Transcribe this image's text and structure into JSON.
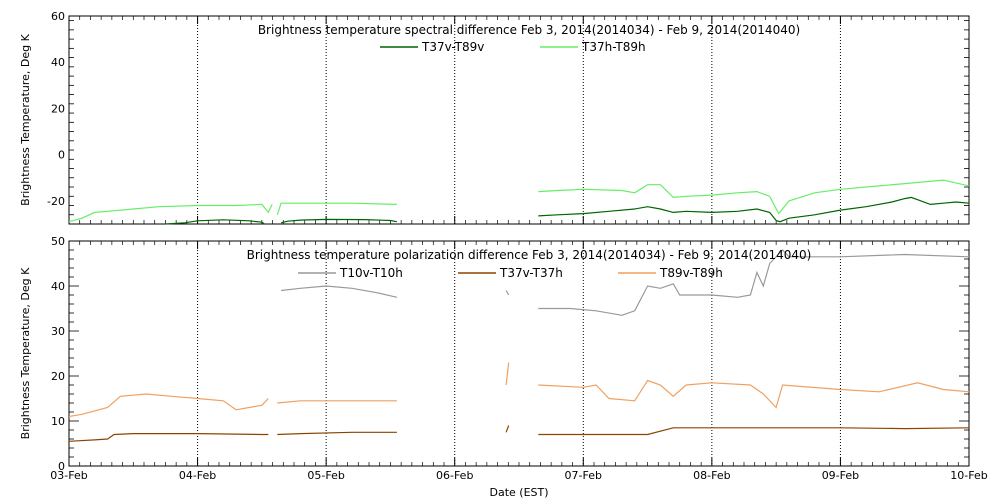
{
  "chart_data": [
    {
      "type": "line",
      "title": "Brightness temperature spectral difference     Feb  3, 2014(2014034) - Feb  9, 2014(2014040)",
      "xlabel": "",
      "ylabel": "Brightness Temperature, Deg K",
      "xlim": [
        0,
        7
      ],
      "ylim": [
        -30,
        60
      ],
      "yticks": [
        -20,
        0,
        20,
        40,
        60
      ],
      "grid": "vertical dotted",
      "legend_placement": "top-center",
      "series": [
        {
          "name": "T37v-T89v",
          "color": "#006400",
          "segments": [
            [
              [
                0.75,
                -30
              ],
              [
                0.9,
                -29.5
              ],
              [
                1.0,
                -28.6
              ],
              [
                1.2,
                -28.2
              ],
              [
                1.4,
                -28.6
              ],
              [
                1.5,
                -29.2
              ],
              [
                1.52,
                -30
              ]
            ],
            [
              [
                1.65,
                -29.5
              ],
              [
                1.7,
                -28.8
              ],
              [
                1.8,
                -28.3
              ],
              [
                2.0,
                -28.0
              ],
              [
                2.3,
                -28.1
              ],
              [
                2.5,
                -28.5
              ],
              [
                2.55,
                -29.0
              ]
            ],
            [
              [
                3.65,
                -26.5
              ],
              [
                3.8,
                -26.0
              ],
              [
                4.0,
                -25.5
              ],
              [
                4.2,
                -24.5
              ],
              [
                4.4,
                -23.5
              ],
              [
                4.5,
                -22.5
              ],
              [
                4.6,
                -23.5
              ],
              [
                4.7,
                -25.0
              ],
              [
                4.8,
                -24.5
              ],
              [
                5.0,
                -25.0
              ],
              [
                5.2,
                -24.5
              ],
              [
                5.35,
                -23.5
              ],
              [
                5.45,
                -25.0
              ],
              [
                5.5,
                -28.5
              ],
              [
                5.53,
                -29.0
              ],
              [
                5.6,
                -27.5
              ],
              [
                5.8,
                -26.0
              ],
              [
                6.0,
                -24.0
              ],
              [
                6.2,
                -22.5
              ],
              [
                6.4,
                -20.5
              ],
              [
                6.5,
                -19.0
              ],
              [
                6.55,
                -18.5
              ],
              [
                6.6,
                -19.5
              ],
              [
                6.7,
                -21.5
              ],
              [
                6.8,
                -21.0
              ],
              [
                6.9,
                -20.5
              ],
              [
                7.0,
                -21.0
              ]
            ]
          ]
        },
        {
          "name": "T37h-T89h",
          "color": "#66ee66",
          "segments": [
            [
              [
                0.0,
                -29.0
              ],
              [
                0.1,
                -27.5
              ],
              [
                0.2,
                -25.0
              ],
              [
                0.3,
                -24.5
              ],
              [
                0.5,
                -23.5
              ],
              [
                0.7,
                -22.5
              ],
              [
                1.0,
                -22.0
              ],
              [
                1.3,
                -22.0
              ],
              [
                1.5,
                -21.5
              ],
              [
                1.55,
                -25.0
              ],
              [
                1.58,
                -21.5
              ]
            ],
            [
              [
                1.62,
                -26.0
              ],
              [
                1.65,
                -21.0
              ],
              [
                1.9,
                -21.0
              ],
              [
                2.2,
                -21.0
              ],
              [
                2.55,
                -21.5
              ]
            ],
            [
              [
                3.65,
                -16.0
              ],
              [
                3.8,
                -15.5
              ],
              [
                4.0,
                -15.0
              ],
              [
                4.3,
                -15.5
              ],
              [
                4.4,
                -16.5
              ],
              [
                4.5,
                -13.0
              ],
              [
                4.6,
                -13.0
              ],
              [
                4.7,
                -18.5
              ],
              [
                4.8,
                -18.0
              ],
              [
                5.0,
                -17.5
              ],
              [
                5.2,
                -16.5
              ],
              [
                5.35,
                -16.0
              ],
              [
                5.45,
                -18.0
              ],
              [
                5.52,
                -25.5
              ],
              [
                5.6,
                -20.0
              ],
              [
                5.8,
                -16.5
              ],
              [
                6.0,
                -15.0
              ],
              [
                6.3,
                -13.5
              ],
              [
                6.5,
                -12.5
              ],
              [
                6.8,
                -11.0
              ],
              [
                7.0,
                -13.5
              ]
            ]
          ]
        }
      ]
    },
    {
      "type": "line",
      "title": "Brightness temperature polarization difference     Feb  3, 2014(2014034) - Feb  9, 2014(2014040)",
      "xlabel": "Date (EST)",
      "ylabel": "Brightness Temperature, Deg K",
      "xlim": [
        0,
        7
      ],
      "ylim": [
        0,
        50
      ],
      "yticks": [
        0,
        10,
        20,
        30,
        40,
        50
      ],
      "xticks": [
        "03-Feb",
        "04-Feb",
        "05-Feb",
        "06-Feb",
        "07-Feb",
        "08-Feb",
        "09-Feb",
        "10-Feb"
      ],
      "grid": "vertical dotted",
      "legend_placement": "top-center",
      "series": [
        {
          "name": "T10v-T10h",
          "color": "#999999",
          "segments": [
            [
              [
                1.65,
                39.0
              ],
              [
                1.8,
                39.5
              ],
              [
                2.0,
                40.0
              ],
              [
                2.2,
                39.5
              ],
              [
                2.4,
                38.5
              ],
              [
                2.55,
                37.5
              ]
            ],
            [
              [
                3.4,
                39.0
              ],
              [
                3.42,
                38.0
              ]
            ],
            [
              [
                3.65,
                35.0
              ],
              [
                3.9,
                35.0
              ],
              [
                4.1,
                34.5
              ],
              [
                4.3,
                33.5
              ],
              [
                4.4,
                34.5
              ],
              [
                4.5,
                40.0
              ],
              [
                4.6,
                39.5
              ],
              [
                4.7,
                40.5
              ],
              [
                4.75,
                38.0
              ],
              [
                5.0,
                38.0
              ],
              [
                5.2,
                37.5
              ],
              [
                5.3,
                38.0
              ],
              [
                5.35,
                43.0
              ],
              [
                5.4,
                40.0
              ],
              [
                5.45,
                45.0
              ],
              [
                5.55,
                48.0
              ],
              [
                5.6,
                46.5
              ],
              [
                6.0,
                46.5
              ],
              [
                6.5,
                47.0
              ],
              [
                7.0,
                46.5
              ]
            ]
          ]
        },
        {
          "name": "T37v-T37h",
          "color": "#8b4500",
          "segments": [
            [
              [
                0.0,
                5.5
              ],
              [
                0.2,
                5.8
              ],
              [
                0.3,
                6.0
              ],
              [
                0.35,
                7.0
              ],
              [
                0.5,
                7.2
              ],
              [
                1.0,
                7.2
              ],
              [
                1.5,
                7.0
              ],
              [
                1.55,
                7.0
              ]
            ],
            [
              [
                1.62,
                7.0
              ],
              [
                1.8,
                7.2
              ],
              [
                2.2,
                7.5
              ],
              [
                2.55,
                7.5
              ]
            ],
            [
              [
                3.4,
                7.5
              ],
              [
                3.42,
                9.0
              ]
            ],
            [
              [
                3.65,
                7.0
              ],
              [
                4.0,
                7.0
              ],
              [
                4.5,
                7.0
              ],
              [
                4.7,
                8.5
              ],
              [
                5.0,
                8.5
              ],
              [
                5.5,
                8.5
              ],
              [
                6.0,
                8.5
              ],
              [
                6.5,
                8.3
              ],
              [
                7.0,
                8.5
              ]
            ]
          ]
        },
        {
          "name": "T89v-T89h",
          "color": "#f0a060",
          "segments": [
            [
              [
                0.0,
                11.0
              ],
              [
                0.1,
                11.5
              ],
              [
                0.3,
                13.0
              ],
              [
                0.4,
                15.5
              ],
              [
                0.6,
                16.0
              ],
              [
                0.8,
                15.5
              ],
              [
                1.0,
                15.0
              ],
              [
                1.2,
                14.5
              ],
              [
                1.3,
                12.5
              ],
              [
                1.4,
                13.0
              ],
              [
                1.5,
                13.5
              ],
              [
                1.55,
                15.0
              ]
            ],
            [
              [
                1.62,
                14.0
              ],
              [
                1.8,
                14.5
              ],
              [
                2.2,
                14.5
              ],
              [
                2.55,
                14.5
              ]
            ],
            [
              [
                3.4,
                18.0
              ],
              [
                3.42,
                23.0
              ]
            ],
            [
              [
                3.65,
                18.0
              ],
              [
                4.0,
                17.5
              ],
              [
                4.1,
                18.0
              ],
              [
                4.2,
                15.0
              ],
              [
                4.4,
                14.5
              ],
              [
                4.5,
                19.0
              ],
              [
                4.6,
                18.0
              ],
              [
                4.7,
                15.5
              ],
              [
                4.8,
                18.0
              ],
              [
                5.0,
                18.5
              ],
              [
                5.3,
                18.0
              ],
              [
                5.4,
                16.0
              ],
              [
                5.5,
                13.0
              ],
              [
                5.55,
                18.0
              ],
              [
                6.0,
                17.0
              ],
              [
                6.3,
                16.5
              ],
              [
                6.6,
                18.5
              ],
              [
                6.8,
                17.0
              ],
              [
                7.0,
                16.5
              ]
            ]
          ]
        }
      ]
    }
  ]
}
